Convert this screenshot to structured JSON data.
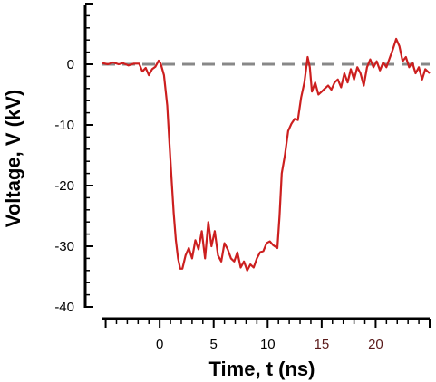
{
  "chart_data": {
    "type": "line",
    "xlabel": "Time, t (ns)",
    "ylabel": "Voltage, V (kV)",
    "xlim": [
      -5.3,
      25
    ],
    "ylim": [
      -40,
      10
    ],
    "x_ticks": [
      {
        "value": 0,
        "label": "0",
        "color": "#000000"
      },
      {
        "value": 5,
        "label": "5",
        "color": "#000000"
      },
      {
        "value": 10,
        "label": "10",
        "color": "#000000"
      },
      {
        "value": 15,
        "label": "15",
        "color": "#5a1a1a"
      },
      {
        "value": 20,
        "label": "20",
        "color": "#5a1a1a"
      }
    ],
    "y_ticks": [
      {
        "value": 0,
        "label": "0"
      },
      {
        "value": -10,
        "label": "-10"
      },
      {
        "value": -20,
        "label": "-20"
      },
      {
        "value": -30,
        "label": "-30"
      },
      {
        "value": -40,
        "label": "-40"
      }
    ],
    "reference_line": {
      "y": 0,
      "style": "dashed",
      "color": "#888888"
    },
    "series": [
      {
        "color": "#cc1f1f",
        "points": [
          [
            -5.3,
            0.2
          ],
          [
            -4.8,
            0.0
          ],
          [
            -4.3,
            0.3
          ],
          [
            -3.8,
            0.0
          ],
          [
            -3.4,
            0.2
          ],
          [
            -2.9,
            -0.2
          ],
          [
            -2.4,
            0.1
          ],
          [
            -1.9,
            0.1
          ],
          [
            -1.6,
            -1.2
          ],
          [
            -1.3,
            -0.6
          ],
          [
            -1.0,
            -1.8
          ],
          [
            -0.7,
            -0.8
          ],
          [
            -0.4,
            -0.4
          ],
          [
            -0.1,
            0.6
          ],
          [
            0.1,
            0.1
          ],
          [
            0.4,
            -1.8
          ],
          [
            0.7,
            -6.8
          ],
          [
            0.9,
            -13.0
          ],
          [
            1.1,
            -19.0
          ],
          [
            1.3,
            -24.5
          ],
          [
            1.5,
            -29.0
          ],
          [
            1.7,
            -32.0
          ],
          [
            1.9,
            -33.7
          ],
          [
            2.1,
            -33.7
          ],
          [
            2.4,
            -31.5
          ],
          [
            2.7,
            -30.3
          ],
          [
            3.0,
            -32.0
          ],
          [
            3.3,
            -29.0
          ],
          [
            3.6,
            -30.5
          ],
          [
            3.9,
            -27.5
          ],
          [
            4.2,
            -32.0
          ],
          [
            4.5,
            -26.0
          ],
          [
            4.8,
            -30.0
          ],
          [
            5.1,
            -27.5
          ],
          [
            5.4,
            -31.5
          ],
          [
            5.7,
            -32.5
          ],
          [
            6.0,
            -29.5
          ],
          [
            6.3,
            -30.5
          ],
          [
            6.6,
            -32.0
          ],
          [
            6.9,
            -32.5
          ],
          [
            7.2,
            -31.0
          ],
          [
            7.5,
            -33.5
          ],
          [
            7.8,
            -32.5
          ],
          [
            8.1,
            -34.0
          ],
          [
            8.4,
            -33.0
          ],
          [
            8.7,
            -33.5
          ],
          [
            9.0,
            -32.0
          ],
          [
            9.3,
            -31.0
          ],
          [
            9.6,
            -30.8
          ],
          [
            9.9,
            -29.5
          ],
          [
            10.2,
            -29.2
          ],
          [
            10.5,
            -29.8
          ],
          [
            10.9,
            -30.3
          ],
          [
            11.1,
            -25.0
          ],
          [
            11.3,
            -18.0
          ],
          [
            11.6,
            -15.0
          ],
          [
            11.9,
            -11.0
          ],
          [
            12.2,
            -9.8
          ],
          [
            12.5,
            -9.0
          ],
          [
            12.8,
            -9.2
          ],
          [
            13.1,
            -5.5
          ],
          [
            13.4,
            -3.0
          ],
          [
            13.7,
            1.2
          ],
          [
            13.9,
            -0.5
          ],
          [
            14.1,
            -4.5
          ],
          [
            14.4,
            -3.0
          ],
          [
            14.7,
            -5.0
          ],
          [
            15.0,
            -4.5
          ],
          [
            15.3,
            -4.0
          ],
          [
            15.6,
            -3.5
          ],
          [
            15.9,
            -4.2
          ],
          [
            16.2,
            -3.0
          ],
          [
            16.5,
            -2.5
          ],
          [
            16.8,
            -3.8
          ],
          [
            17.1,
            -1.5
          ],
          [
            17.4,
            -3.0
          ],
          [
            17.7,
            -0.8
          ],
          [
            18.0,
            -2.5
          ],
          [
            18.3,
            -0.5
          ],
          [
            18.6,
            -1.5
          ],
          [
            18.9,
            -3.5
          ],
          [
            19.2,
            -0.5
          ],
          [
            19.5,
            0.8
          ],
          [
            19.8,
            -0.5
          ],
          [
            20.1,
            0.5
          ],
          [
            20.4,
            -1.0
          ],
          [
            20.7,
            0.3
          ],
          [
            21.0,
            -0.5
          ],
          [
            21.3,
            1.0
          ],
          [
            21.6,
            2.5
          ],
          [
            21.9,
            4.2
          ],
          [
            22.2,
            3.0
          ],
          [
            22.5,
            0.5
          ],
          [
            22.8,
            1.2
          ],
          [
            23.1,
            -0.5
          ],
          [
            23.4,
            0.3
          ],
          [
            23.7,
            -1.5
          ],
          [
            24.0,
            -0.5
          ],
          [
            24.3,
            -2.5
          ],
          [
            24.6,
            -0.8
          ],
          [
            25.0,
            -1.5
          ]
        ]
      }
    ]
  }
}
